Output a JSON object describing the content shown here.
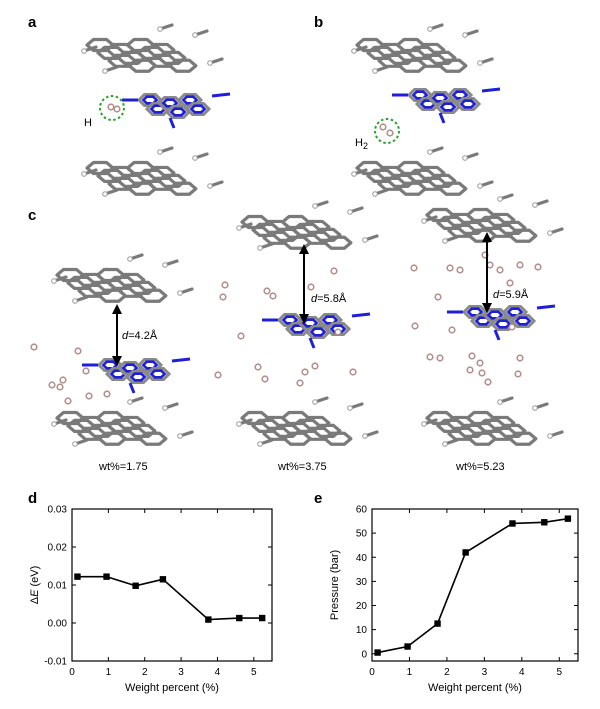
{
  "panels": {
    "a": {
      "letter": "a",
      "atom_label": "H"
    },
    "b": {
      "letter": "b",
      "atom_label": "H",
      "atom_sub": "2"
    },
    "c": {
      "letter": "c",
      "subpanels": [
        {
          "distance_italic": "d",
          "distance_value": "=4.2Å",
          "loading": "wt%=1.75"
        },
        {
          "distance_italic": "d",
          "distance_value": "=5.8Å",
          "loading": "wt%=3.75"
        },
        {
          "distance_italic": "d",
          "distance_value": "=5.9Å",
          "loading": "wt%=5.23"
        }
      ]
    },
    "d": {
      "letter": "d"
    },
    "e": {
      "letter": "e"
    }
  },
  "colors": {
    "graphene": "#7a7a7a",
    "graphene_edge": "#9a9a9a",
    "carbon_nitride_c": "#8a8a8a",
    "carbon_nitride_n": "#1f1fd6",
    "hydrogen": "#b38f8f",
    "highlight": "#2ca02c"
  },
  "chart_data": [
    {
      "type": "line",
      "panel": "d",
      "ylabel_prefix": "Δ",
      "ylabel_italic": "E",
      "ylabel_suffix": " (eV)",
      "xlabel": "Weight percent (%)",
      "xlim": [
        0,
        5.5
      ],
      "ylim": [
        -0.01,
        0.03
      ],
      "xticks": [
        0,
        1,
        2,
        3,
        4,
        5
      ],
      "yticks": [
        -0.01,
        0.0,
        0.01,
        0.02,
        0.03
      ],
      "ytick_labels": [
        "-0.01",
        "0.00",
        "0.01",
        "0.02",
        "0.03"
      ],
      "series": [
        {
          "x": [
            0.15,
            0.95,
            1.75,
            2.5,
            3.75,
            4.6,
            5.23
          ],
          "y": [
            0.0122,
            0.0122,
            0.0098,
            0.0115,
            0.0009,
            0.0013,
            0.0013
          ]
        }
      ]
    },
    {
      "type": "line",
      "panel": "e",
      "ylabel": "Pressure (bar)",
      "xlabel": "Weight percent (%)",
      "xlim": [
        0,
        5.5
      ],
      "ylim": [
        -3,
        60
      ],
      "xticks": [
        0,
        1,
        2,
        3,
        4,
        5
      ],
      "yticks": [
        0,
        10,
        20,
        30,
        40,
        50,
        60
      ],
      "ytick_labels": [
        "0",
        "10",
        "20",
        "30",
        "40",
        "50",
        "60"
      ],
      "series": [
        {
          "x": [
            0.15,
            0.95,
            1.75,
            2.5,
            3.75,
            4.6,
            5.23
          ],
          "y": [
            0.5,
            3,
            12.5,
            42,
            54,
            54.5,
            56
          ]
        }
      ]
    }
  ]
}
